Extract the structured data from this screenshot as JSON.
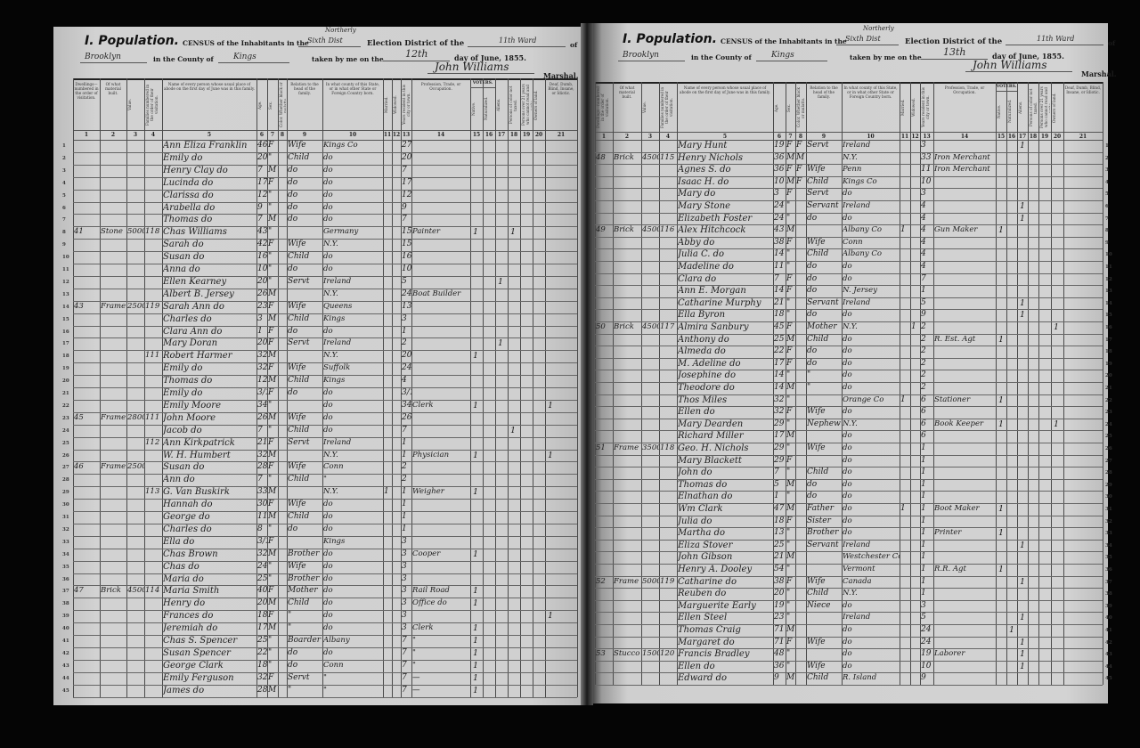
{
  "column_headers": [
    "Dwellings—numbered in the order of visitation.",
    "Of what material built.",
    "Value.",
    "Families numbered in the order of their visitation.",
    "Name of every person whose usual place of abode on the first day of June was in this family.",
    "Age.",
    "Sex.",
    "Color. Whether black or mulatto.",
    "Relation to the head of the family.",
    "In what county of this State, or in what other State or Foreign Country born.",
    "Married.",
    "Widowed.",
    "Years resident in this city or town.",
    "Profession, Trade, or Occupation.",
    "Native.",
    "Naturalized.",
    "Aliens.",
    "Persons of color not taxed.",
    "Persons over 21 years who cannot read and write.",
    "Owners of land.",
    "Deaf, Dumb, Blind, Insane, or Idiotic."
  ],
  "column_numbers": [
    "1",
    "2",
    "3",
    "4",
    "5",
    "6",
    "7",
    "8",
    "9",
    "10",
    "11",
    "12",
    "13",
    "14",
    "15",
    "16",
    "17",
    "18",
    "19",
    "20",
    "21"
  ],
  "voters_label": "VOTERS.",
  "left_page": {
    "section_title": "I. Population.",
    "census_label": "CENSUS of the Inhabitants in the",
    "district_hand_top": "Northerly",
    "district_hand": "Sixth Dist",
    "election_label": "Election District of the",
    "ward_hand": "11th Ward",
    "of_label": "of",
    "city_hand": "Brooklyn",
    "county_label": "in the County of",
    "county_hand": "Kings",
    "taken_label": "taken by me on the",
    "day_hand": "12th",
    "date_label": "day of June, 1855.",
    "signature": "John Williams",
    "marshal_label": "Marshal.",
    "rows": [
      {
        "n": "Ann Eliza Franklin",
        "a": "46",
        "s": "F",
        "r": "Wife",
        "b": "Kings Co",
        "y": "27"
      },
      {
        "n": "Emily do",
        "a": "20",
        "s": "\"",
        "r": "Child",
        "b": "do",
        "y": "20"
      },
      {
        "n": "Henry Clay do",
        "a": "7",
        "s": "M",
        "r": "do",
        "b": "do",
        "y": "7"
      },
      {
        "n": "Lucinda do",
        "a": "17",
        "s": "F",
        "r": "do",
        "b": "do",
        "y": "17"
      },
      {
        "n": "Clarissa do",
        "a": "12",
        "s": "\"",
        "r": "do",
        "b": "do",
        "y": "12"
      },
      {
        "n": "Arabella do",
        "a": "9",
        "s": "\"",
        "r": "do",
        "b": "do",
        "y": "9"
      },
      {
        "n": "Thomas do",
        "a": "7",
        "s": "M",
        "r": "do",
        "b": "do",
        "y": "7"
      },
      {
        "d": "41",
        "m": "Stone",
        "v": "5000",
        "f": "118",
        "n": "Chas Williams",
        "a": "43",
        "s": "\"",
        "b": "Germany",
        "y": "15",
        "p": "Painter",
        "k": {
          "15": "1",
          "18": "1"
        }
      },
      {
        "n": "Sarah do",
        "a": "42",
        "s": "F",
        "r": "Wife",
        "b": "N.Y.",
        "y": "15"
      },
      {
        "n": "Susan do",
        "a": "16",
        "s": "\"",
        "r": "Child",
        "b": "do",
        "y": "16"
      },
      {
        "n": "Anna do",
        "a": "10",
        "s": "\"",
        "r": "do",
        "b": "do",
        "y": "10"
      },
      {
        "n": "Ellen Kearney",
        "a": "20",
        "s": "\"",
        "r": "Servt",
        "b": "Ireland",
        "y": "5",
        "k": {
          "17": "1"
        }
      },
      {
        "n": "Albert B. Jersey",
        "a": "26",
        "s": "M",
        "b": "N.Y.",
        "y": "24",
        "p": "Boat Builder"
      },
      {
        "d": "43",
        "m": "Frame",
        "v": "2500",
        "f": "119",
        "n": "Sarah Ann do",
        "a": "23",
        "s": "F",
        "r": "Wife",
        "b": "Queens",
        "y": "13"
      },
      {
        "n": "Charles do",
        "a": "3",
        "s": "M",
        "r": "Child",
        "b": "Kings",
        "y": "3"
      },
      {
        "n": "Clara Ann do",
        "a": "1",
        "s": "F",
        "r": "do",
        "b": "do",
        "y": "1"
      },
      {
        "n": "Mary Doran",
        "a": "20",
        "s": "F",
        "r": "Servt",
        "b": "Ireland",
        "y": "2",
        "k": {
          "17": "1"
        }
      },
      {
        "f": "111",
        "n": "Robert Harmer",
        "a": "32",
        "s": "M",
        "b": "N.Y.",
        "y": "20",
        "k": {
          "15": "1"
        }
      },
      {
        "n": "Emily do",
        "a": "32",
        "s": "F",
        "r": "Wife",
        "b": "Suffolk",
        "y": "24"
      },
      {
        "n": "Thomas do",
        "a": "12",
        "s": "M",
        "r": "Child",
        "b": "Kings",
        "y": "4"
      },
      {
        "n": "Emily do",
        "a": "3/12",
        "s": "F",
        "r": "do",
        "b": "do",
        "y": "3/12"
      },
      {
        "n": "Emily Moore",
        "a": "34",
        "s": "\"",
        "b": "do",
        "y": "34",
        "p": "Clerk",
        "k": {
          "15": "1",
          "21": "1"
        }
      },
      {
        "d": "45",
        "m": "Frame",
        "v": "2800",
        "f": "111",
        "n": "John Moore",
        "a": "26",
        "s": "M",
        "r": "Wife",
        "b": "do",
        "y": "26"
      },
      {
        "n": "Jacob do",
        "a": "7",
        "s": "\"",
        "r": "Child",
        "b": "do",
        "y": "7",
        "k": {
          "18": "1"
        }
      },
      {
        "f": "112",
        "n": "Ann Kirkpatrick",
        "a": "21",
        "s": "F",
        "r": "Servt",
        "b": "Ireland",
        "y": "1"
      },
      {
        "n": "W. H. Humbert",
        "a": "32",
        "s": "M",
        "b": "N.Y.",
        "y": "1",
        "p": "Physician",
        "k": {
          "15": "1",
          "21": "1"
        }
      },
      {
        "d": "46",
        "m": "Frame",
        "v": "2500",
        "n": "Susan do",
        "a": "28",
        "s": "F",
        "r": "Wife",
        "b": "Conn",
        "y": "2"
      },
      {
        "n": "Ann do",
        "a": "7",
        "s": "\"",
        "r": "Child",
        "b": "\"",
        "y": "2"
      },
      {
        "f": "113",
        "n": "G. Van Buskirk",
        "a": "33",
        "s": "M",
        "b": "N.Y.",
        "mar": "1",
        "y": "1",
        "p": "Weigher",
        "k": {
          "15": "1"
        }
      },
      {
        "n": "Hannah do",
        "a": "30",
        "s": "F",
        "r": "Wife",
        "b": "do",
        "y": "1"
      },
      {
        "n": "George do",
        "a": "11",
        "s": "M",
        "r": "Child",
        "b": "do",
        "y": "1"
      },
      {
        "n": "Charles do",
        "a": "8",
        "s": "\"",
        "r": "do",
        "b": "do",
        "y": "1"
      },
      {
        "n": "Ella do",
        "a": "3/12",
        "s": "F",
        "b": "Kings",
        "y": "3"
      },
      {
        "n": "Chas Brown",
        "a": "32",
        "s": "M",
        "r": "Brother",
        "b": "do",
        "y": "3",
        "p": "Cooper",
        "k": {
          "15": "1"
        }
      },
      {
        "n": "Chas do",
        "a": "24",
        "s": "\"",
        "r": "Wife",
        "b": "do",
        "y": "3"
      },
      {
        "n": "Maria do",
        "a": "25",
        "s": "\"",
        "r": "Brother",
        "b": "do",
        "y": "3"
      },
      {
        "d": "47",
        "m": "Brick",
        "v": "4500",
        "f": "114",
        "n": "Maria Smith",
        "a": "40",
        "s": "F",
        "r": "Mother",
        "b": "do",
        "y": "3",
        "p": "Rail Road",
        "k": {
          "15": "1"
        }
      },
      {
        "n": "Henry do",
        "a": "20",
        "s": "M",
        "r": "Child",
        "b": "do",
        "y": "3",
        "p": "Office do",
        "k": {
          "15": "1"
        }
      },
      {
        "n": "Frances do",
        "a": "18",
        "s": "F",
        "r": "\"",
        "b": "do",
        "y": "3",
        "k": {
          "21": "1"
        }
      },
      {
        "n": "Jeremiah do",
        "a": "17",
        "s": "M",
        "r": "\"",
        "b": "do",
        "y": "3",
        "p": "Clerk",
        "k": {
          "15": "1"
        }
      },
      {
        "n": "Chas S. Spencer",
        "a": "25",
        "s": "\"",
        "r": "Boarder",
        "b": "Albany",
        "y": "7",
        "p": "\"",
        "k": {
          "15": "1"
        }
      },
      {
        "n": "Susan Spencer",
        "a": "22",
        "s": "\"",
        "r": "do",
        "b": "do",
        "y": "7",
        "p": "\"",
        "k": {
          "15": "1"
        }
      },
      {
        "n": "George Clark",
        "a": "18",
        "s": "\"",
        "r": "do",
        "b": "Conn",
        "y": "7",
        "p": "\"",
        "k": {
          "15": "1"
        }
      },
      {
        "n": "Emily Ferguson",
        "a": "32",
        "s": "F",
        "r": "Servt",
        "b": "\"",
        "y": "7",
        "p": "—",
        "k": {
          "15": "1"
        }
      },
      {
        "n": "James do",
        "a": "28",
        "s": "M",
        "r": "\"",
        "b": "\"",
        "y": "7",
        "p": "—",
        "k": {
          "15": "1"
        }
      }
    ]
  },
  "right_page": {
    "section_title": "I. Population.",
    "census_label": "CENSUS of the Inhabitants in the",
    "district_hand_top": "Northerly",
    "district_hand": "Sixth Dist",
    "election_label": "Election District of the",
    "ward_hand": "11th Ward",
    "of_label": "of",
    "city_hand": "Brooklyn",
    "county_label": "in the County of",
    "county_hand": "Kings",
    "taken_label": "taken by me on the",
    "day_hand": "13th",
    "date_label": "day of June, 1855.",
    "signature": "John Williams",
    "marshal_label": "Marshal.",
    "rows": [
      {
        "n": "Mary Hunt",
        "a": "19",
        "s": "F",
        "c": "F",
        "r": "Servt",
        "b": "Ireland",
        "y": "3",
        "k": {
          "17": "1"
        }
      },
      {
        "d": "48",
        "m": "Brick",
        "v": "4500",
        "f": "115",
        "n": "Henry Nichols",
        "a": "36",
        "s": "M",
        "c": "M",
        "b": "N.Y.",
        "y": "33",
        "p": "Iron Merchant"
      },
      {
        "n": "Agnes S. do",
        "a": "36",
        "s": "F",
        "c": "F",
        "r": "Wife",
        "b": "Penn",
        "y": "11",
        "p": "Iron Merchant"
      },
      {
        "n": "Isaac H. do",
        "a": "10",
        "s": "M",
        "c": "F",
        "r": "Child",
        "b": "Kings Co",
        "y": "10"
      },
      {
        "n": "Mary do",
        "a": "3",
        "s": "F",
        "r": "Servt",
        "b": "do",
        "y": "3"
      },
      {
        "n": "Mary Stone",
        "a": "24",
        "s": "\"",
        "r": "Servant",
        "b": "Ireland",
        "y": "4",
        "k": {
          "17": "1"
        }
      },
      {
        "n": "Elizabeth Foster",
        "a": "24",
        "s": "\"",
        "r": "do",
        "b": "do",
        "y": "4",
        "k": {
          "17": "1"
        }
      },
      {
        "d": "49",
        "m": "Brick",
        "v": "4500",
        "f": "116",
        "n": "Alex Hitchcock",
        "a": "43",
        "s": "M",
        "b": "Albany Co",
        "mar": "1",
        "y": "4",
        "p": "Gun Maker",
        "k": {
          "15": "1"
        }
      },
      {
        "n": "Abby do",
        "a": "38",
        "s": "F",
        "r": "Wife",
        "b": "Conn",
        "y": "4"
      },
      {
        "n": "Julia C. do",
        "a": "14",
        "s": "\"",
        "r": "Child",
        "b": "Albany Co",
        "y": "4"
      },
      {
        "n": "Madeline do",
        "a": "11",
        "s": "\"",
        "r": "do",
        "b": "do",
        "y": "4"
      },
      {
        "n": "Clara do",
        "a": "7",
        "s": "F",
        "r": "do",
        "b": "do",
        "y": "7"
      },
      {
        "n": "Ann E. Morgan",
        "a": "14",
        "s": "F",
        "r": "do",
        "b": "N. Jersey",
        "y": "1"
      },
      {
        "n": "Catharine Murphy",
        "a": "21",
        "s": "\"",
        "r": "Servant",
        "b": "Ireland",
        "y": "5",
        "k": {
          "17": "1"
        }
      },
      {
        "n": "Ella Byron",
        "a": "18",
        "s": "\"",
        "r": "do",
        "b": "do",
        "y": "9",
        "k": {
          "17": "1"
        }
      },
      {
        "d": "50",
        "m": "Brick",
        "v": "4500",
        "f": "117",
        "n": "Almira Sanbury",
        "a": "45",
        "s": "F",
        "r": "Mother",
        "b": "N.Y.",
        "wid": "1",
        "y": "2",
        "k": {
          "20": "1"
        }
      },
      {
        "n": "Anthony do",
        "a": "25",
        "s": "M",
        "r": "Child",
        "b": "do",
        "y": "2",
        "p": "R. Est. Agt",
        "k": {
          "15": "1"
        }
      },
      {
        "n": "Almeda do",
        "a": "22",
        "s": "F",
        "r": "do",
        "b": "do",
        "y": "2"
      },
      {
        "n": "M. Adeline do",
        "a": "17",
        "s": "F",
        "r": "do",
        "b": "do",
        "y": "2"
      },
      {
        "n": "Josephine do",
        "a": "14",
        "s": "\"",
        "r": "\"",
        "b": "do",
        "y": "2"
      },
      {
        "n": "Theodore do",
        "a": "14",
        "s": "M",
        "r": "\"",
        "b": "do",
        "y": "2"
      },
      {
        "n": "Thos Miles",
        "a": "32",
        "s": "\"",
        "b": "Orange Co",
        "mar": "1",
        "y": "6",
        "p": "Stationer",
        "k": {
          "15": "1"
        }
      },
      {
        "n": "Ellen do",
        "a": "32",
        "s": "F",
        "r": "Wife",
        "b": "do",
        "y": "6"
      },
      {
        "n": "Mary Dearden",
        "a": "29",
        "s": "\"",
        "r": "Nephew",
        "b": "N.Y.",
        "y": "6",
        "p": "Book Keeper",
        "k": {
          "15": "1",
          "20": "1"
        }
      },
      {
        "n": "Richard Miller",
        "a": "17",
        "s": "M",
        "b": "do",
        "y": "6"
      },
      {
        "d": "51",
        "m": "Frame",
        "v": "3500",
        "f": "118",
        "n": "Geo. H. Nichols",
        "a": "29",
        "s": "\"",
        "r": "Wife",
        "b": "do",
        "y": "1"
      },
      {
        "n": "Mary Blackett",
        "a": "29",
        "s": "F",
        "b": "do",
        "y": "1"
      },
      {
        "n": "John do",
        "a": "7",
        "s": "\"",
        "r": "Child",
        "b": "do",
        "y": "1"
      },
      {
        "n": "Thomas do",
        "a": "5",
        "s": "M",
        "r": "do",
        "b": "do",
        "y": "1"
      },
      {
        "n": "Elnathan do",
        "a": "1",
        "s": "\"",
        "r": "do",
        "b": "do",
        "y": "1"
      },
      {
        "n": "Wm Clark",
        "a": "47",
        "s": "M",
        "r": "Father",
        "b": "do",
        "mar": "1",
        "y": "1",
        "p": "Boot Maker",
        "k": {
          "15": "1"
        }
      },
      {
        "n": "Julia do",
        "a": "18",
        "s": "F",
        "r": "Sister",
        "b": "do",
        "y": "1"
      },
      {
        "n": "Martha do",
        "a": "13",
        "s": "\"",
        "r": "Brother",
        "b": "do",
        "y": "1",
        "p": "Printer",
        "k": {
          "15": "1"
        }
      },
      {
        "n": "Eliza Stover",
        "a": "25",
        "s": "\"",
        "r": "Servant",
        "b": "Ireland",
        "y": "1",
        "k": {
          "17": "1"
        }
      },
      {
        "n": "John Gibson",
        "a": "21",
        "s": "M",
        "b": "Westchester Co",
        "y": "1"
      },
      {
        "n": "Henry A. Dooley",
        "a": "54",
        "s": "\"",
        "b": "Vermont",
        "y": "1",
        "p": "R.R. Agt",
        "k": {
          "15": "1"
        }
      },
      {
        "d": "52",
        "m": "Frame",
        "v": "5000",
        "f": "119",
        "n": "Catharine do",
        "a": "38",
        "s": "F",
        "r": "Wife",
        "b": "Canada",
        "y": "1",
        "k": {
          "17": "1"
        }
      },
      {
        "n": "Reuben do",
        "a": "20",
        "s": "\"",
        "r": "Child",
        "b": "N.Y.",
        "y": "1"
      },
      {
        "n": "Marguerite Early",
        "a": "19",
        "s": "\"",
        "r": "Niece",
        "b": "do",
        "y": "3"
      },
      {
        "n": "Ellen Steel",
        "a": "23",
        "s": "\"",
        "b": "Ireland",
        "y": "5",
        "k": {
          "17": "1"
        }
      },
      {
        "n": "Thomas Craig",
        "a": "71",
        "s": "M",
        "b": "do",
        "y": "24",
        "k": {
          "16": "1"
        }
      },
      {
        "n": "Margaret do",
        "a": "71",
        "s": "F",
        "r": "Wife",
        "b": "do",
        "y": "24",
        "k": {
          "17": "1"
        }
      },
      {
        "d": "53",
        "m": "Stucco",
        "v": "1500",
        "f": "120",
        "n": "Francis Bradley",
        "a": "48",
        "s": "\"",
        "b": "do",
        "y": "19",
        "p": "Laborer",
        "k": {
          "17": "1"
        }
      },
      {
        "n": "Ellen do",
        "a": "36",
        "s": "\"",
        "r": "Wife",
        "b": "do",
        "y": "10",
        "k": {
          "17": "1"
        }
      },
      {
        "n": "Edward do",
        "a": "9",
        "s": "M",
        "r": "Child",
        "b": "R. Island",
        "y": "9"
      }
    ]
  }
}
